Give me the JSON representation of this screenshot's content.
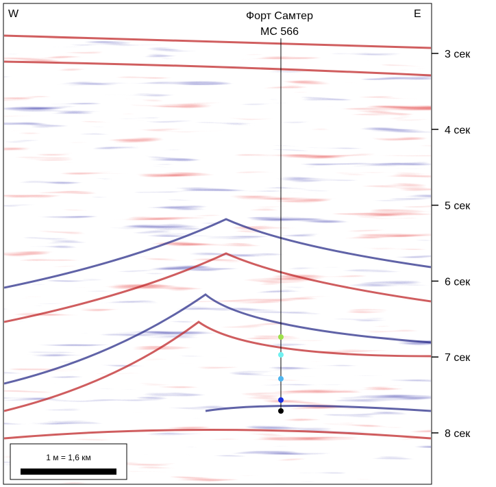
{
  "labels": {
    "west": "W",
    "east": "E"
  },
  "well": {
    "name": "Форт Самтер",
    "id": "MC 566"
  },
  "time_axis": [
    "3 сек",
    "4 сек",
    "5 сек",
    "6 сек",
    "7 сек",
    "8 сек"
  ],
  "scale": "1 м = 1,6 км"
}
